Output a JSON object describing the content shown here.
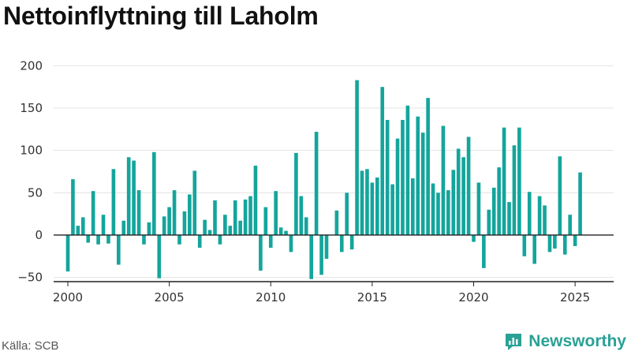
{
  "title": "Nettoinflyttning till Laholm",
  "source": "Källa: SCB",
  "brand": {
    "name": "Newsworthy",
    "icon": "newsworthy-logo-icon",
    "color": "#2aa195"
  },
  "chart_data": {
    "type": "bar",
    "title": "Nettoinflyttning till Laholm",
    "xlabel": "",
    "ylabel": "",
    "bar_color": "#14a59c",
    "grid": true,
    "ylim": [
      -55,
      205
    ],
    "xlim": [
      1999.3,
      2026.9
    ],
    "yticks": [
      -50,
      0,
      50,
      100,
      150,
      200
    ],
    "xticks": [
      2000,
      2005,
      2010,
      2015,
      2020,
      2025
    ],
    "x": [
      2000.0,
      2000.25,
      2000.5,
      2000.75,
      2001.0,
      2001.25,
      2001.5,
      2001.75,
      2002.0,
      2002.25,
      2002.5,
      2002.75,
      2003.0,
      2003.25,
      2003.5,
      2003.75,
      2004.0,
      2004.25,
      2004.5,
      2004.75,
      2005.0,
      2005.25,
      2005.5,
      2005.75,
      2006.0,
      2006.25,
      2006.5,
      2006.75,
      2007.0,
      2007.25,
      2007.5,
      2007.75,
      2008.0,
      2008.25,
      2008.5,
      2008.75,
      2009.0,
      2009.25,
      2009.5,
      2009.75,
      2010.0,
      2010.25,
      2010.5,
      2010.75,
      2011.0,
      2011.25,
      2011.5,
      2011.75,
      2012.0,
      2012.25,
      2012.5,
      2012.75,
      2013.0,
      2013.25,
      2013.5,
      2013.75,
      2014.0,
      2014.25,
      2014.5,
      2014.75,
      2015.0,
      2015.25,
      2015.5,
      2015.75,
      2016.0,
      2016.25,
      2016.5,
      2016.75,
      2017.0,
      2017.25,
      2017.5,
      2017.75,
      2018.0,
      2018.25,
      2018.5,
      2018.75,
      2019.0,
      2019.25,
      2019.5,
      2019.75,
      2020.0,
      2020.25,
      2020.5,
      2020.75,
      2021.0,
      2021.25,
      2021.5,
      2021.75,
      2022.0,
      2022.25,
      2022.5,
      2022.75,
      2023.0,
      2023.25,
      2023.5,
      2023.75,
      2024.0,
      2024.25,
      2024.5,
      2024.75,
      2025.0,
      2025.25
    ],
    "values": [
      -43,
      66,
      11,
      21,
      -9,
      52,
      -11,
      24,
      -10,
      78,
      -35,
      17,
      92,
      88,
      53,
      -11,
      15,
      98,
      -51,
      22,
      33,
      53,
      -11,
      28,
      48,
      76,
      -15,
      18,
      6,
      41,
      -11,
      24,
      11,
      41,
      17,
      42,
      46,
      82,
      -42,
      33,
      -15,
      52,
      9,
      5,
      -20,
      97,
      46,
      21,
      -52,
      122,
      -47,
      -28,
      0,
      29,
      -20,
      50,
      -17,
      183,
      76,
      78,
      62,
      68,
      175,
      136,
      60,
      114,
      136,
      153,
      67,
      140,
      121,
      162,
      61,
      50,
      129,
      53,
      77,
      102,
      92,
      116,
      -8,
      62,
      -39,
      30,
      56,
      80,
      127,
      39,
      106,
      127,
      -25,
      51,
      -34,
      46,
      35,
      -20,
      -16,
      93,
      -23,
      24,
      -13,
      74
    ]
  }
}
